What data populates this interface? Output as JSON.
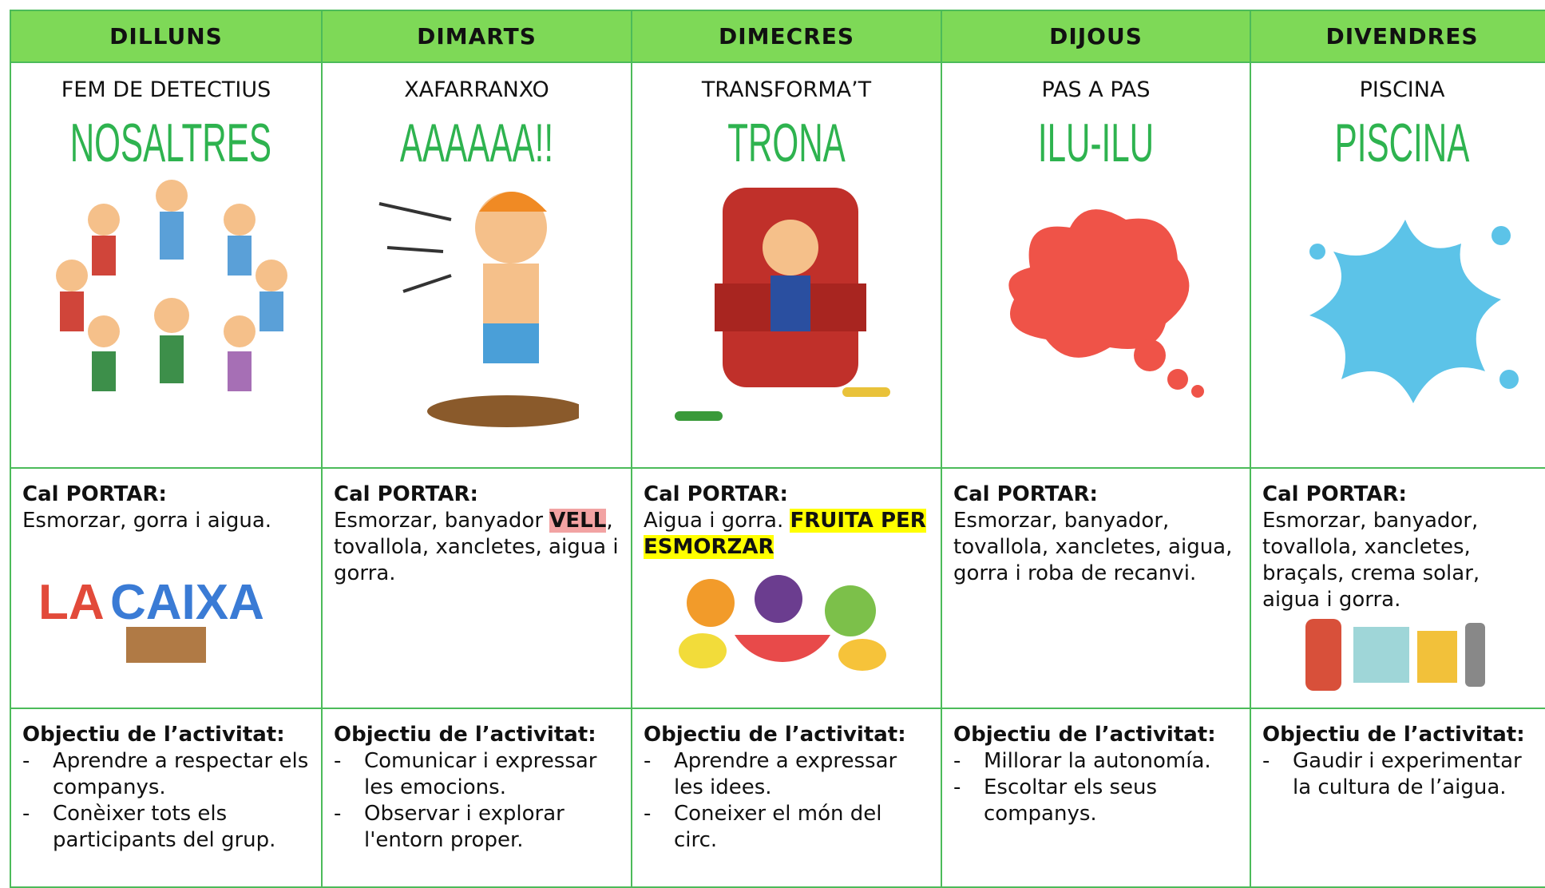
{
  "header_color": "#7ed957",
  "title_color": "#2eb34f",
  "days": [
    {
      "day": "DILLUNS",
      "activity": "FEM DE DETECTIUS",
      "title": "NOSALTRES",
      "carry_label": "Cal PORTAR:",
      "carry": [
        {
          "text": "Esmorzar, gorra i aigua."
        }
      ],
      "objective_label": "Objectiu de l’activitat:",
      "objectives": [
        "Aprendre a respectar els companys.",
        "Conèixer tots els participants del grup."
      ]
    },
    {
      "day": "DIMARTS",
      "activity": "XAFARRANXO",
      "title": "AAAAAA!!",
      "carry_label": "Cal PORTAR:",
      "carry": [
        {
          "text": "Esmorzar, banyador "
        },
        {
          "text": "VELL",
          "bold": true,
          "highlight": "#f2a3a3"
        },
        {
          "text": ", tovallola, xancletes, aigua i gorra."
        }
      ],
      "objective_label": "Objectiu de l’activitat:",
      "objectives": [
        "Comunicar i expressar les emocions.",
        "Observar i explorar l'entorn proper."
      ]
    },
    {
      "day": "DIMECRES",
      "activity": "TRANSFORMA’T",
      "title": "TRONA",
      "carry_label": "Cal PORTAR:",
      "carry": [
        {
          "text": "Aigua i gorra. "
        },
        {
          "text": "FRUITA PER ESMORZAR",
          "bold": true,
          "highlight": "#ffff00"
        }
      ],
      "objective_label": "Objectiu de l’activitat:",
      "objectives": [
        "Aprendre a expressar les idees.",
        "Coneixer el món del circ."
      ]
    },
    {
      "day": "DIJOUS",
      "activity": "PAS A PAS",
      "title": "ILU-ILU",
      "carry_label": "Cal PORTAR:",
      "carry": [
        {
          "text": "Esmorzar, banyador, tovallola, xancletes, aigua, gorra i roba de recanvi."
        }
      ],
      "objective_label": "Objectiu de l’activitat:",
      "objectives": [
        "Millorar la autonomía.",
        "Escoltar els seus companys."
      ]
    },
    {
      "day": "DIVENDRES",
      "activity": "PISCINA",
      "title": "PISCINA",
      "carry_label": "Cal PORTAR:",
      "carry": [
        {
          "text": "Esmorzar, banyador, tovallola, xancletes, braçals,  crema solar, aigua i gorra."
        }
      ],
      "objective_label": "Objectiu de l’activitat:",
      "objectives": [
        "Gaudir i experimentar la cultura de l’aigua."
      ]
    }
  ]
}
